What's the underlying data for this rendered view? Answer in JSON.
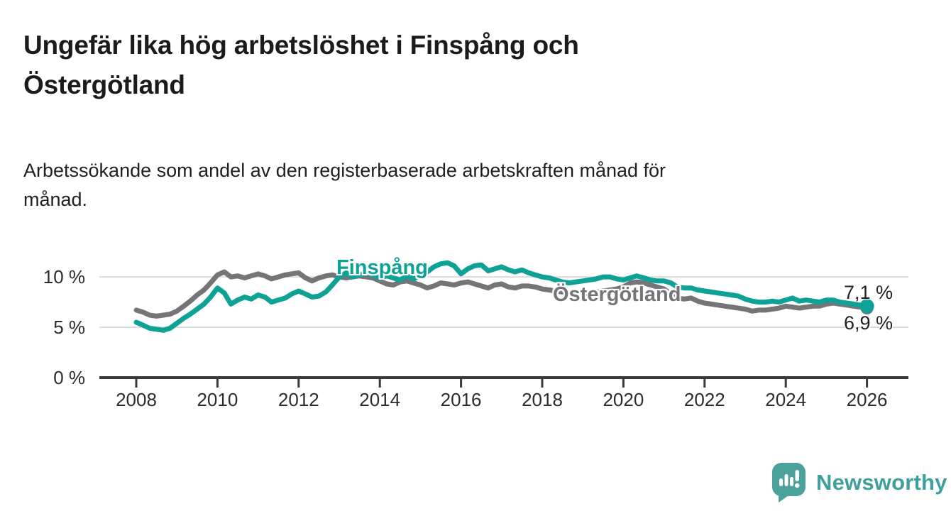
{
  "header": {
    "title_lines": [
      "Ungefär lika hög arbetslöshet i Finspång och",
      "Östergötland"
    ],
    "subtitle_lines": [
      "Arbetssökande som andel av den registerbaserade arbetskraften månad för",
      "månad."
    ]
  },
  "chart_data": {
    "type": "line",
    "title": "Ungefär lika hög arbetslöshet i Finspång och Östergötland",
    "subtitle": "Arbetssökande som andel av den registerbaserade arbetskraften månad för månad.",
    "unit": "%",
    "xlabel": "",
    "ylabel": "%",
    "xlim": [
      2007.1,
      2027.0
    ],
    "ylim": [
      0,
      11.8
    ],
    "grid": "horizontal",
    "legend_position": "inline-labels",
    "x_ticks": [
      {
        "v": 2008,
        "label": "2008"
      },
      {
        "v": 2010,
        "label": "2010"
      },
      {
        "v": 2012,
        "label": "2012"
      },
      {
        "v": 2014,
        "label": "2014"
      },
      {
        "v": 2016,
        "label": "2016"
      },
      {
        "v": 2018,
        "label": "2018"
      },
      {
        "v": 2020,
        "label": "2020"
      },
      {
        "v": 2022,
        "label": "2022"
      },
      {
        "v": 2024,
        "label": "2024"
      },
      {
        "v": 2026,
        "label": "2026"
      }
    ],
    "y_ticks": [
      {
        "v": 0,
        "label": "0 %"
      },
      {
        "v": 5,
        "label": "5 %"
      },
      {
        "v": 10,
        "label": "10 %"
      }
    ],
    "x": [
      2008.0,
      2008.17,
      2008.33,
      2008.5,
      2008.67,
      2008.83,
      2009.0,
      2009.17,
      2009.33,
      2009.5,
      2009.67,
      2009.83,
      2010.0,
      2010.17,
      2010.33,
      2010.5,
      2010.67,
      2010.83,
      2011.0,
      2011.17,
      2011.33,
      2011.5,
      2011.67,
      2011.83,
      2012.0,
      2012.17,
      2012.33,
      2012.5,
      2012.67,
      2012.83,
      2013.0,
      2013.17,
      2013.33,
      2013.5,
      2013.67,
      2013.83,
      2014.0,
      2014.17,
      2014.33,
      2014.5,
      2014.67,
      2014.83,
      2015.0,
      2015.17,
      2015.33,
      2015.5,
      2015.67,
      2015.83,
      2016.0,
      2016.17,
      2016.33,
      2016.5,
      2016.67,
      2016.83,
      2017.0,
      2017.17,
      2017.33,
      2017.5,
      2017.67,
      2017.83,
      2018.0,
      2018.17,
      2018.33,
      2018.5,
      2018.67,
      2018.83,
      2019.0,
      2019.17,
      2019.33,
      2019.5,
      2019.67,
      2019.83,
      2020.0,
      2020.17,
      2020.33,
      2020.5,
      2020.67,
      2020.83,
      2021.0,
      2021.17,
      2021.33,
      2021.5,
      2021.67,
      2021.83,
      2022.0,
      2022.17,
      2022.33,
      2022.5,
      2022.67,
      2022.83,
      2023.0,
      2023.17,
      2023.33,
      2023.5,
      2023.67,
      2023.83,
      2024.0,
      2024.17,
      2024.33,
      2024.5,
      2024.67,
      2024.83,
      2025.0,
      2025.17,
      2025.33,
      2025.5,
      2025.67,
      2025.83,
      2026.0
    ],
    "series": [
      {
        "name": "Finspång",
        "color": "#0ea296",
        "end_value": 7.1,
        "values": [
          5.5,
          5.2,
          4.9,
          4.8,
          4.7,
          4.9,
          5.4,
          5.9,
          6.3,
          6.8,
          7.3,
          8.0,
          8.9,
          8.4,
          7.3,
          7.7,
          8.0,
          7.8,
          8.2,
          8.0,
          7.5,
          7.7,
          7.9,
          8.3,
          8.6,
          8.3,
          8.0,
          8.1,
          8.5,
          9.2,
          10.0,
          10.4,
          10.0,
          10.2,
          10.4,
          10.2,
          9.9,
          10.1,
          9.9,
          9.7,
          10.1,
          9.8,
          10.1,
          10.5,
          11.0,
          11.3,
          11.4,
          11.1,
          10.3,
          10.8,
          11.1,
          11.2,
          10.6,
          10.8,
          11.0,
          10.7,
          10.5,
          10.7,
          10.4,
          10.2,
          10.0,
          9.9,
          9.7,
          9.5,
          9.4,
          9.5,
          9.6,
          9.7,
          9.8,
          10.0,
          10.0,
          9.8,
          9.7,
          9.9,
          10.1,
          9.9,
          9.7,
          9.6,
          9.6,
          9.4,
          9.0,
          8.9,
          8.9,
          8.7,
          8.6,
          8.5,
          8.4,
          8.3,
          8.2,
          8.1,
          7.8,
          7.6,
          7.5,
          7.5,
          7.6,
          7.5,
          7.7,
          7.9,
          7.6,
          7.7,
          7.6,
          7.5,
          7.7,
          7.7,
          7.5,
          7.4,
          7.3,
          7.2,
          7.1
        ]
      },
      {
        "name": "Östergötland",
        "color": "#757579",
        "end_value": 6.9,
        "values": [
          6.7,
          6.5,
          6.2,
          6.1,
          6.2,
          6.3,
          6.6,
          7.1,
          7.6,
          8.2,
          8.7,
          9.4,
          10.2,
          10.5,
          10.0,
          10.1,
          9.9,
          10.1,
          10.3,
          10.1,
          9.8,
          10.0,
          10.2,
          10.3,
          10.4,
          9.9,
          9.6,
          9.9,
          10.1,
          10.2,
          10.0,
          9.9,
          10.0,
          10.1,
          10.0,
          9.9,
          9.6,
          9.3,
          9.2,
          9.5,
          9.6,
          9.4,
          9.2,
          8.9,
          9.1,
          9.4,
          9.3,
          9.2,
          9.4,
          9.5,
          9.3,
          9.1,
          8.9,
          9.2,
          9.3,
          9.0,
          8.9,
          9.1,
          9.1,
          9.0,
          8.8,
          8.7,
          8.6,
          8.5,
          8.4,
          8.3,
          8.3,
          8.4,
          8.5,
          8.6,
          8.7,
          8.8,
          9.0,
          9.4,
          9.5,
          9.4,
          9.2,
          9.0,
          8.8,
          8.3,
          7.9,
          7.8,
          7.9,
          7.6,
          7.4,
          7.3,
          7.2,
          7.1,
          7.0,
          6.9,
          6.8,
          6.6,
          6.7,
          6.7,
          6.8,
          6.9,
          7.1,
          7.0,
          6.9,
          7.0,
          7.1,
          7.1,
          7.3,
          7.4,
          7.3,
          7.2,
          7.1,
          7.0,
          6.9
        ]
      }
    ],
    "end_labels": {
      "top": "7,1 %",
      "bottom": "6,9 %"
    },
    "colors": {
      "axis": "#3a3a3a",
      "gridline": "#dcdcdc",
      "finspang": "#0ea296",
      "ostergotland": "#757579"
    }
  },
  "footer": {
    "brand": "Newsworthy",
    "brand_color": "#3da09b",
    "logo_color": "#4ba19c"
  }
}
